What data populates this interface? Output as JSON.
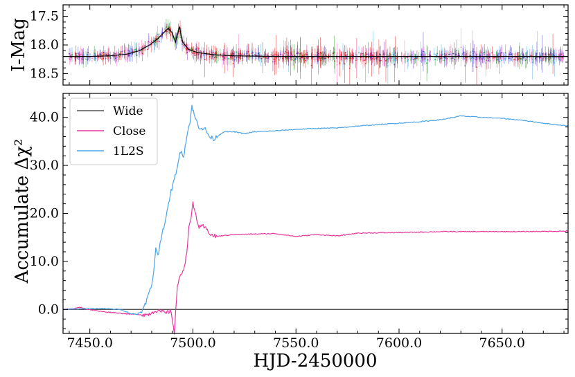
{
  "chart_data": [
    {
      "type": "scatter",
      "title": "",
      "xlabel": "",
      "ylabel": "I-Mag",
      "xlim": [
        7437,
        7682
      ],
      "ylim": [
        18.7,
        17.3
      ],
      "y_inverted": true,
      "yticks": [
        "17.5",
        "18.0",
        "18.5"
      ],
      "grid": false,
      "series": [
        {
          "kind": "light-curve-points",
          "colors": [
            "#e41a1c",
            "#3a3acc",
            "#7b2fbe",
            "#2ca02c",
            "#ff6ec7",
            "#4fb0e8"
          ],
          "baseline_mag": 18.2,
          "error_mag": 0.08,
          "x_range": [
            7440,
            7680
          ]
        },
        {
          "kind": "model-curve",
          "color": "#000000",
          "points": [
            [
              7437,
              18.2
            ],
            [
              7450,
              18.2
            ],
            [
              7460,
              18.19
            ],
            [
              7468,
              18.16
            ],
            [
              7474,
              18.1
            ],
            [
              7479,
              18.0
            ],
            [
              7483,
              17.89
            ],
            [
              7486,
              17.78
            ],
            [
              7488,
              17.71
            ],
            [
              7490,
              17.79
            ],
            [
              7491.5,
              17.95
            ],
            [
              7492.5,
              17.82
            ],
            [
              7493.5,
              17.68
            ],
            [
              7495,
              17.95
            ],
            [
              7498,
              18.08
            ],
            [
              7502,
              18.13
            ],
            [
              7510,
              18.17
            ],
            [
              7520,
              18.19
            ],
            [
              7540,
              18.2
            ],
            [
              7682,
              18.2
            ]
          ]
        }
      ]
    },
    {
      "type": "line",
      "title": "",
      "xlabel": "HJD-2450000",
      "ylabel": "Accumulate Δχ²",
      "xlim": [
        7437,
        7682
      ],
      "ylim": [
        -5,
        45
      ],
      "xticks": [
        "7450.0",
        "7500.0",
        "7550.0",
        "7600.0",
        "7650.0"
      ],
      "yticks": [
        "0.0",
        "10.0",
        "20.0",
        "30.0",
        "40.0"
      ],
      "legend_position": "top-left",
      "grid": false,
      "series": [
        {
          "name": "Wide",
          "color": "#555555",
          "points": [
            [
              7437,
              0
            ],
            [
              7682,
              0
            ]
          ]
        },
        {
          "name": "Close",
          "color": "#e8369c",
          "points": [
            [
              7437,
              0.0
            ],
            [
              7442,
              0.1
            ],
            [
              7445,
              0.5
            ],
            [
              7448,
              0.1
            ],
            [
              7455,
              -0.4
            ],
            [
              7460,
              -0.6
            ],
            [
              7465,
              -0.8
            ],
            [
              7470,
              -1.0
            ],
            [
              7478,
              -1.1
            ],
            [
              7482,
              -0.2
            ],
            [
              7485,
              -0.5
            ],
            [
              7487,
              -0.8
            ],
            [
              7489,
              -0.3
            ],
            [
              7490,
              -2.0
            ],
            [
              7491,
              -4.8
            ],
            [
              7491.6,
              -0.5
            ],
            [
              7492.5,
              5.0
            ],
            [
              7494,
              7.0
            ],
            [
              7495.5,
              8.5
            ],
            [
              7497,
              11.5
            ],
            [
              7498,
              17.5
            ],
            [
              7499,
              18.5
            ],
            [
              7500,
              22.0
            ],
            [
              7501.5,
              19.5
            ],
            [
              7503,
              17.0
            ],
            [
              7505,
              17.3
            ],
            [
              7507,
              16.5
            ],
            [
              7509,
              15.5
            ],
            [
              7511,
              15.2
            ],
            [
              7520,
              15.6
            ],
            [
              7530,
              15.7
            ],
            [
              7540,
              15.8
            ],
            [
              7550,
              15.2
            ],
            [
              7560,
              15.6
            ],
            [
              7570,
              15.3
            ],
            [
              7580,
              15.9
            ],
            [
              7600,
              16.0
            ],
            [
              7620,
              16.2
            ],
            [
              7640,
              16.2
            ],
            [
              7660,
              16.2
            ],
            [
              7682,
              16.3
            ]
          ]
        },
        {
          "name": "1L2S",
          "color": "#4aa3e6",
          "points": [
            [
              7437,
              0.0
            ],
            [
              7445,
              0.1
            ],
            [
              7455,
              0.2
            ],
            [
              7465,
              0.0
            ],
            [
              7470,
              -0.9
            ],
            [
              7473,
              -1.0
            ],
            [
              7476,
              0.0
            ],
            [
              7478,
              2.5
            ],
            [
              7480,
              5.0
            ],
            [
              7481,
              8.0
            ],
            [
              7482,
              13.0
            ],
            [
              7483,
              11.0
            ],
            [
              7485,
              16.0
            ],
            [
              7487,
              19.0
            ],
            [
              7489,
              24.0
            ],
            [
              7491,
              27.0
            ],
            [
              7492.5,
              30.0
            ],
            [
              7494,
              33.0
            ],
            [
              7495.5,
              32.0
            ],
            [
              7497,
              36.0
            ],
            [
              7498.5,
              39.0
            ],
            [
              7499.5,
              42.3
            ],
            [
              7501,
              40.0
            ],
            [
              7503,
              38.0
            ],
            [
              7506,
              37.5
            ],
            [
              7508,
              36.0
            ],
            [
              7510,
              35.5
            ],
            [
              7515,
              37.0
            ],
            [
              7520,
              37.0
            ],
            [
              7525,
              36.6
            ],
            [
              7530,
              37.0
            ],
            [
              7540,
              37.2
            ],
            [
              7550,
              37.5
            ],
            [
              7560,
              37.7
            ],
            [
              7570,
              37.8
            ],
            [
              7580,
              38.2
            ],
            [
              7590,
              38.5
            ],
            [
              7600,
              38.8
            ],
            [
              7610,
              39.1
            ],
            [
              7620,
              39.5
            ],
            [
              7630,
              40.3
            ],
            [
              7640,
              40.0
            ],
            [
              7650,
              39.8
            ],
            [
              7660,
              39.4
            ],
            [
              7670,
              38.8
            ],
            [
              7682,
              38.2
            ]
          ]
        }
      ]
    }
  ]
}
